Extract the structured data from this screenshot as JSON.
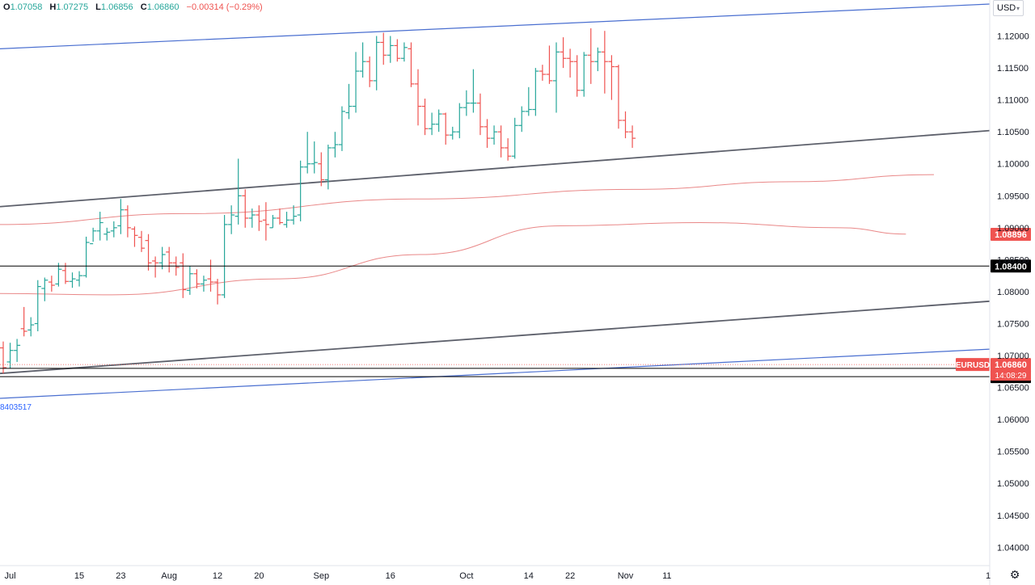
{
  "header": {
    "o_label": "O",
    "open": "1.07058",
    "h_label": "H",
    "high": "1.07275",
    "l_label": "L",
    "low": "1.06856",
    "c_label": "C",
    "close": "1.06860",
    "change": "−0.00314 (−0.29%)"
  },
  "currency": {
    "label": "USD"
  },
  "channel_label": "8403517",
  "settings_icon": "gear-icon",
  "colors": {
    "up": "#26a69a",
    "down": "#ef5350",
    "channel": "#4a6fd0",
    "trend": "#5d606b",
    "ma_fast": "#e57373",
    "ma_slow": "#e57373",
    "hline": "#000000",
    "axis_text": "#131722"
  },
  "chart_data": {
    "type": "ohlc",
    "symbol": "EURUSD",
    "ylim": [
      1.0365,
      1.125
    ],
    "y_ticks": [
      "1.04000",
      "1.04500",
      "1.05000",
      "1.05500",
      "1.06000",
      "1.06500",
      "1.07000",
      "1.07500",
      "1.08000",
      "1.08500",
      "1.09000",
      "1.09500",
      "1.10000",
      "1.10500",
      "1.11000",
      "1.11500",
      "1.12000"
    ],
    "x_ticks": [
      {
        "label": "Jul",
        "date": "2024-07-01"
      },
      {
        "label": "15",
        "date": "2024-07-15"
      },
      {
        "label": "23",
        "date": "2024-07-23"
      },
      {
        "label": "Aug",
        "date": "2024-08-01"
      },
      {
        "label": "12",
        "date": "2024-08-12"
      },
      {
        "label": "20",
        "date": "2024-08-20"
      },
      {
        "label": "Sep",
        "date": "2024-09-02"
      },
      {
        "label": "16",
        "date": "2024-09-16"
      },
      {
        "label": "Oct",
        "date": "2024-10-01"
      },
      {
        "label": "14",
        "date": "2024-10-14"
      },
      {
        "label": "22",
        "date": "2024-10-22"
      },
      {
        "label": "Nov",
        "date": "2024-11-01"
      },
      {
        "label": "11",
        "date": "2024-11-11"
      },
      {
        "label": "1",
        "date": "2024-12-01"
      }
    ],
    "bars": [
      {
        "date": "2024-06-28",
        "o": 1.0712,
        "h": 1.0722,
        "l": 1.0672,
        "c": 1.0681
      },
      {
        "date": "2024-07-01",
        "o": 1.069,
        "h": 1.072,
        "l": 1.068,
        "c": 1.0708
      },
      {
        "date": "2024-07-02",
        "o": 1.0708,
        "h": 1.0726,
        "l": 1.069,
        "c": 1.0716
      },
      {
        "date": "2024-07-03",
        "o": 1.0742,
        "h": 1.0776,
        "l": 1.073,
        "c": 1.0738
      },
      {
        "date": "2024-07-04",
        "o": 1.074,
        "h": 1.076,
        "l": 1.073,
        "c": 1.0748
      },
      {
        "date": "2024-07-05",
        "o": 1.075,
        "h": 1.0818,
        "l": 1.0738,
        "c": 1.0808
      },
      {
        "date": "2024-07-08",
        "o": 1.0805,
        "h": 1.0822,
        "l": 1.0785,
        "c": 1.0818
      },
      {
        "date": "2024-07-09",
        "o": 1.0815,
        "h": 1.0825,
        "l": 1.08,
        "c": 1.081
      },
      {
        "date": "2024-07-10",
        "o": 1.0812,
        "h": 1.0845,
        "l": 1.0808,
        "c": 1.0835
      },
      {
        "date": "2024-07-11",
        "o": 1.0833,
        "h": 1.0845,
        "l": 1.0812,
        "c": 1.0816
      },
      {
        "date": "2024-07-12",
        "o": 1.0816,
        "h": 1.083,
        "l": 1.0806,
        "c": 1.082
      },
      {
        "date": "2024-07-15",
        "o": 1.0818,
        "h": 1.0832,
        "l": 1.0808,
        "c": 1.0825
      },
      {
        "date": "2024-07-16",
        "o": 1.0825,
        "h": 1.0886,
        "l": 1.0822,
        "c": 1.0877
      },
      {
        "date": "2024-07-17",
        "o": 1.0875,
        "h": 1.09,
        "l": 1.0878,
        "c": 1.0895
      },
      {
        "date": "2024-07-18",
        "o": 1.0895,
        "h": 1.0925,
        "l": 1.088,
        "c": 1.0908
      },
      {
        "date": "2024-07-19",
        "o": 1.089,
        "h": 1.09,
        "l": 1.088,
        "c": 1.0893
      },
      {
        "date": "2024-07-22",
        "o": 1.0895,
        "h": 1.091,
        "l": 1.0885,
        "c": 1.09
      },
      {
        "date": "2024-07-23",
        "o": 1.0903,
        "h": 1.0945,
        "l": 1.089,
        "c": 1.0928
      },
      {
        "date": "2024-07-24",
        "o": 1.0928,
        "h": 1.0935,
        "l": 1.0885,
        "c": 1.09
      },
      {
        "date": "2024-07-25",
        "o": 1.0898,
        "h": 1.0902,
        "l": 1.087,
        "c": 1.0888
      },
      {
        "date": "2024-07-26",
        "o": 1.0885,
        "h": 1.0895,
        "l": 1.0862,
        "c": 1.0868
      },
      {
        "date": "2024-07-29",
        "o": 1.088,
        "h": 1.089,
        "l": 1.0833,
        "c": 1.0845
      },
      {
        "date": "2024-07-30",
        "o": 1.0848,
        "h": 1.0855,
        "l": 1.0822,
        "c": 1.0845
      },
      {
        "date": "2024-07-31",
        "o": 1.0845,
        "h": 1.087,
        "l": 1.0835,
        "c": 1.0858
      },
      {
        "date": "2024-08-01",
        "o": 1.0862,
        "h": 1.087,
        "l": 1.083,
        "c": 1.0845
      },
      {
        "date": "2024-08-02",
        "o": 1.0845,
        "h": 1.0855,
        "l": 1.0825,
        "c": 1.0838
      },
      {
        "date": "2024-08-05",
        "o": 1.0845,
        "h": 1.086,
        "l": 1.079,
        "c": 1.0803
      },
      {
        "date": "2024-08-06",
        "o": 1.0802,
        "h": 1.084,
        "l": 1.0795,
        "c": 1.0828
      },
      {
        "date": "2024-08-07",
        "o": 1.0828,
        "h": 1.0835,
        "l": 1.0805,
        "c": 1.0812
      },
      {
        "date": "2024-08-08",
        "o": 1.0812,
        "h": 1.0825,
        "l": 1.08,
        "c": 1.0818
      },
      {
        "date": "2024-08-09",
        "o": 1.082,
        "h": 1.085,
        "l": 1.08,
        "c": 1.0815
      },
      {
        "date": "2024-08-12",
        "o": 1.0815,
        "h": 1.082,
        "l": 1.078,
        "c": 1.0795
      },
      {
        "date": "2024-08-13",
        "o": 1.0795,
        "h": 1.092,
        "l": 1.079,
        "c": 1.0905
      },
      {
        "date": "2024-08-14",
        "o": 1.0905,
        "h": 1.0935,
        "l": 1.089,
        "c": 1.092
      },
      {
        "date": "2024-08-15",
        "o": 1.0918,
        "h": 1.1008,
        "l": 1.0905,
        "c": 1.095
      },
      {
        "date": "2024-08-16",
        "o": 1.095,
        "h": 1.096,
        "l": 1.09,
        "c": 1.0915
      },
      {
        "date": "2024-08-19",
        "o": 1.0915,
        "h": 1.093,
        "l": 1.09,
        "c": 1.092
      },
      {
        "date": "2024-08-20",
        "o": 1.092,
        "h": 1.0935,
        "l": 1.0895,
        "c": 1.091
      },
      {
        "date": "2024-08-21",
        "o": 1.0912,
        "h": 1.094,
        "l": 1.088,
        "c": 1.0905
      },
      {
        "date": "2024-08-22",
        "o": 1.09,
        "h": 1.092,
        "l": 1.09,
        "c": 1.0915
      },
      {
        "date": "2024-08-23",
        "o": 1.0915,
        "h": 1.093,
        "l": 1.0905,
        "c": 1.0908
      },
      {
        "date": "2024-08-26",
        "o": 1.0905,
        "h": 1.0925,
        "l": 1.09,
        "c": 1.0912
      },
      {
        "date": "2024-08-27",
        "o": 1.0912,
        "h": 1.0935,
        "l": 1.0905,
        "c": 1.0918
      },
      {
        "date": "2024-08-28",
        "o": 1.092,
        "h": 1.1005,
        "l": 1.091,
        "c": 1.0995
      },
      {
        "date": "2024-08-29",
        "o": 1.0995,
        "h": 1.105,
        "l": 1.0985,
        "c": 1.1
      },
      {
        "date": "2024-08-30",
        "o": 1.1,
        "h": 1.1035,
        "l": 1.0985,
        "c": 1.1002
      },
      {
        "date": "2024-09-02",
        "o": 1.1,
        "h": 1.1018,
        "l": 1.0965,
        "c": 1.0975
      },
      {
        "date": "2024-09-03",
        "o": 1.0975,
        "h": 1.103,
        "l": 1.096,
        "c": 1.1025
      },
      {
        "date": "2024-09-04",
        "o": 1.1025,
        "h": 1.105,
        "l": 1.101,
        "c": 1.103
      },
      {
        "date": "2024-09-05",
        "o": 1.103,
        "h": 1.109,
        "l": 1.102,
        "c": 1.1082
      },
      {
        "date": "2024-09-06",
        "o": 1.108,
        "h": 1.1125,
        "l": 1.107,
        "c": 1.109
      },
      {
        "date": "2024-09-09",
        "o": 1.109,
        "h": 1.1175,
        "l": 1.108,
        "c": 1.1145
      },
      {
        "date": "2024-09-10",
        "o": 1.1145,
        "h": 1.119,
        "l": 1.1135,
        "c": 1.116
      },
      {
        "date": "2024-09-11",
        "o": 1.116,
        "h": 1.1168,
        "l": 1.112,
        "c": 1.113
      },
      {
        "date": "2024-09-12",
        "o": 1.113,
        "h": 1.12,
        "l": 1.1115,
        "c": 1.119
      },
      {
        "date": "2024-09-13",
        "o": 1.119,
        "h": 1.1205,
        "l": 1.1155,
        "c": 1.117
      },
      {
        "date": "2024-09-16",
        "o": 1.117,
        "h": 1.12,
        "l": 1.1158,
        "c": 1.1185
      },
      {
        "date": "2024-09-17",
        "o": 1.1185,
        "h": 1.1195,
        "l": 1.116,
        "c": 1.1165
      },
      {
        "date": "2024-09-18",
        "o": 1.1165,
        "h": 1.119,
        "l": 1.116,
        "c": 1.1182
      },
      {
        "date": "2024-09-19",
        "o": 1.118,
        "h": 1.119,
        "l": 1.112,
        "c": 1.1125
      },
      {
        "date": "2024-09-20",
        "o": 1.1125,
        "h": 1.1148,
        "l": 1.106,
        "c": 1.109
      },
      {
        "date": "2024-09-23",
        "o": 1.109,
        "h": 1.1102,
        "l": 1.1045,
        "c": 1.1055
      },
      {
        "date": "2024-09-24",
        "o": 1.1055,
        "h": 1.108,
        "l": 1.1045,
        "c": 1.1062
      },
      {
        "date": "2024-09-25",
        "o": 1.1062,
        "h": 1.1085,
        "l": 1.105,
        "c": 1.1078
      },
      {
        "date": "2024-09-26",
        "o": 1.1078,
        "h": 1.108,
        "l": 1.103,
        "c": 1.1045
      },
      {
        "date": "2024-09-27",
        "o": 1.1045,
        "h": 1.1058,
        "l": 1.1038,
        "c": 1.105
      },
      {
        "date": "2024-09-30",
        "o": 1.105,
        "h": 1.1095,
        "l": 1.104,
        "c": 1.1088
      },
      {
        "date": "2024-10-01",
        "o": 1.1088,
        "h": 1.1115,
        "l": 1.1075,
        "c": 1.1095
      },
      {
        "date": "2024-10-02",
        "o": 1.1095,
        "h": 1.1148,
        "l": 1.108,
        "c": 1.1095
      },
      {
        "date": "2024-10-03",
        "o": 1.1095,
        "h": 1.111,
        "l": 1.1045,
        "c": 1.1058
      },
      {
        "date": "2024-10-04",
        "o": 1.1058,
        "h": 1.107,
        "l": 1.1025,
        "c": 1.104
      },
      {
        "date": "2024-10-07",
        "o": 1.104,
        "h": 1.106,
        "l": 1.103,
        "c": 1.105
      },
      {
        "date": "2024-10-08",
        "o": 1.105,
        "h": 1.106,
        "l": 1.101,
        "c": 1.1025
      },
      {
        "date": "2024-10-09",
        "o": 1.1025,
        "h": 1.104,
        "l": 1.1005,
        "c": 1.1012
      },
      {
        "date": "2024-10-10",
        "o": 1.1012,
        "h": 1.1072,
        "l": 1.1008,
        "c": 1.106
      },
      {
        "date": "2024-10-11",
        "o": 1.106,
        "h": 1.109,
        "l": 1.105,
        "c": 1.1082
      },
      {
        "date": "2024-10-14",
        "o": 1.1082,
        "h": 1.112,
        "l": 1.1075,
        "c": 1.1085
      },
      {
        "date": "2024-10-15",
        "o": 1.1085,
        "h": 1.115,
        "l": 1.1075,
        "c": 1.1145
      },
      {
        "date": "2024-10-16",
        "o": 1.1145,
        "h": 1.1155,
        "l": 1.113,
        "c": 1.114
      },
      {
        "date": "2024-10-17",
        "o": 1.114,
        "h": 1.1185,
        "l": 1.1125,
        "c": 1.113
      },
      {
        "date": "2024-10-18",
        "o": 1.113,
        "h": 1.119,
        "l": 1.108,
        "c": 1.1175
      },
      {
        "date": "2024-10-21",
        "o": 1.1175,
        "h": 1.1198,
        "l": 1.115,
        "c": 1.1165
      },
      {
        "date": "2024-10-22",
        "o": 1.1165,
        "h": 1.118,
        "l": 1.1135,
        "c": 1.116
      },
      {
        "date": "2024-10-23",
        "o": 1.116,
        "h": 1.117,
        "l": 1.1105,
        "c": 1.1115
      },
      {
        "date": "2024-10-24",
        "o": 1.1115,
        "h": 1.1175,
        "l": 1.1105,
        "c": 1.117
      },
      {
        "date": "2024-10-25",
        "o": 1.117,
        "h": 1.1212,
        "l": 1.1125,
        "c": 1.116
      },
      {
        "date": "2024-10-28",
        "o": 1.116,
        "h": 1.1182,
        "l": 1.1145,
        "c": 1.1175
      },
      {
        "date": "2024-10-29",
        "o": 1.1175,
        "h": 1.1208,
        "l": 1.111,
        "c": 1.116
      },
      {
        "date": "2024-10-30",
        "o": 1.116,
        "h": 1.117,
        "l": 1.11,
        "c": 1.1152
      },
      {
        "date": "2024-10-31",
        "o": 1.1152,
        "h": 1.1155,
        "l": 1.1055,
        "c": 1.1068
      },
      {
        "date": "2024-11-01",
        "o": 1.1068,
        "h": 1.1082,
        "l": 1.104,
        "c": 1.105
      },
      {
        "date": "2024-11-04",
        "o": 1.105,
        "h": 1.106,
        "l": 1.1025,
        "c": 1.104
      }
    ],
    "lines": [
      {
        "name": "",
        "kind": "channel_upper",
        "from": {
          "date": "2024-06-28",
          "price": 1.118
        },
        "to": {
          "date": "2024-11-13",
          "price": 1.125
        }
      },
      {
        "name": "",
        "kind": "channel_lower",
        "from": {
          "date": "2024-06-28",
          "price": 1.0633
        },
        "to": {
          "date": "2024-11-13",
          "price": 1.071
        }
      },
      {
        "name": "",
        "kind": "trend_upper",
        "from": {
          "date": "2024-06-28",
          "price": 1.0933
        },
        "to": {
          "date": "2024-11-13",
          "price": 1.1052
        }
      },
      {
        "name": "",
        "kind": "trend_lower",
        "from": {
          "date": "2024-06-28",
          "price": 1.0672
        },
        "to": {
          "date": "2024-11-13",
          "price": 1.0785
        }
      }
    ],
    "moving_averages": [
      {
        "name": "",
        "kind": "fast",
        "points": [
          [
            1.0905,
            0
          ],
          [
            1.0922,
            0.2
          ],
          [
            1.0945,
            0.45
          ],
          [
            1.096,
            0.68
          ],
          [
            1.0972,
            0.85
          ],
          [
            1.0983,
            1
          ]
        ]
      },
      {
        "name": "",
        "kind": "slow",
        "points": [
          [
            1.0797,
            0
          ],
          [
            1.0795,
            0.12
          ],
          [
            1.082,
            0.3
          ],
          [
            1.0858,
            0.45
          ],
          [
            1.0903,
            0.6
          ],
          [
            1.0908,
            0.75
          ],
          [
            1.09,
            0.9
          ],
          [
            1.089,
            0.97
          ]
        ]
      }
    ],
    "horizontal_levels": [
      {
        "price": 1.084,
        "label": "1.08400"
      },
      {
        "price": 1.068,
        "label": "1.06800"
      },
      {
        "price": 1.0667,
        "label": "1.06670"
      }
    ],
    "price_labels": [
      {
        "price": 1.08896,
        "label": "1.08896",
        "color": "#ef5350"
      },
      {
        "price": 1.0686,
        "symbol_label": "EURUSD",
        "label": "1.06860",
        "countdown": "14:08:29",
        "color": "#ef5350"
      }
    ]
  }
}
